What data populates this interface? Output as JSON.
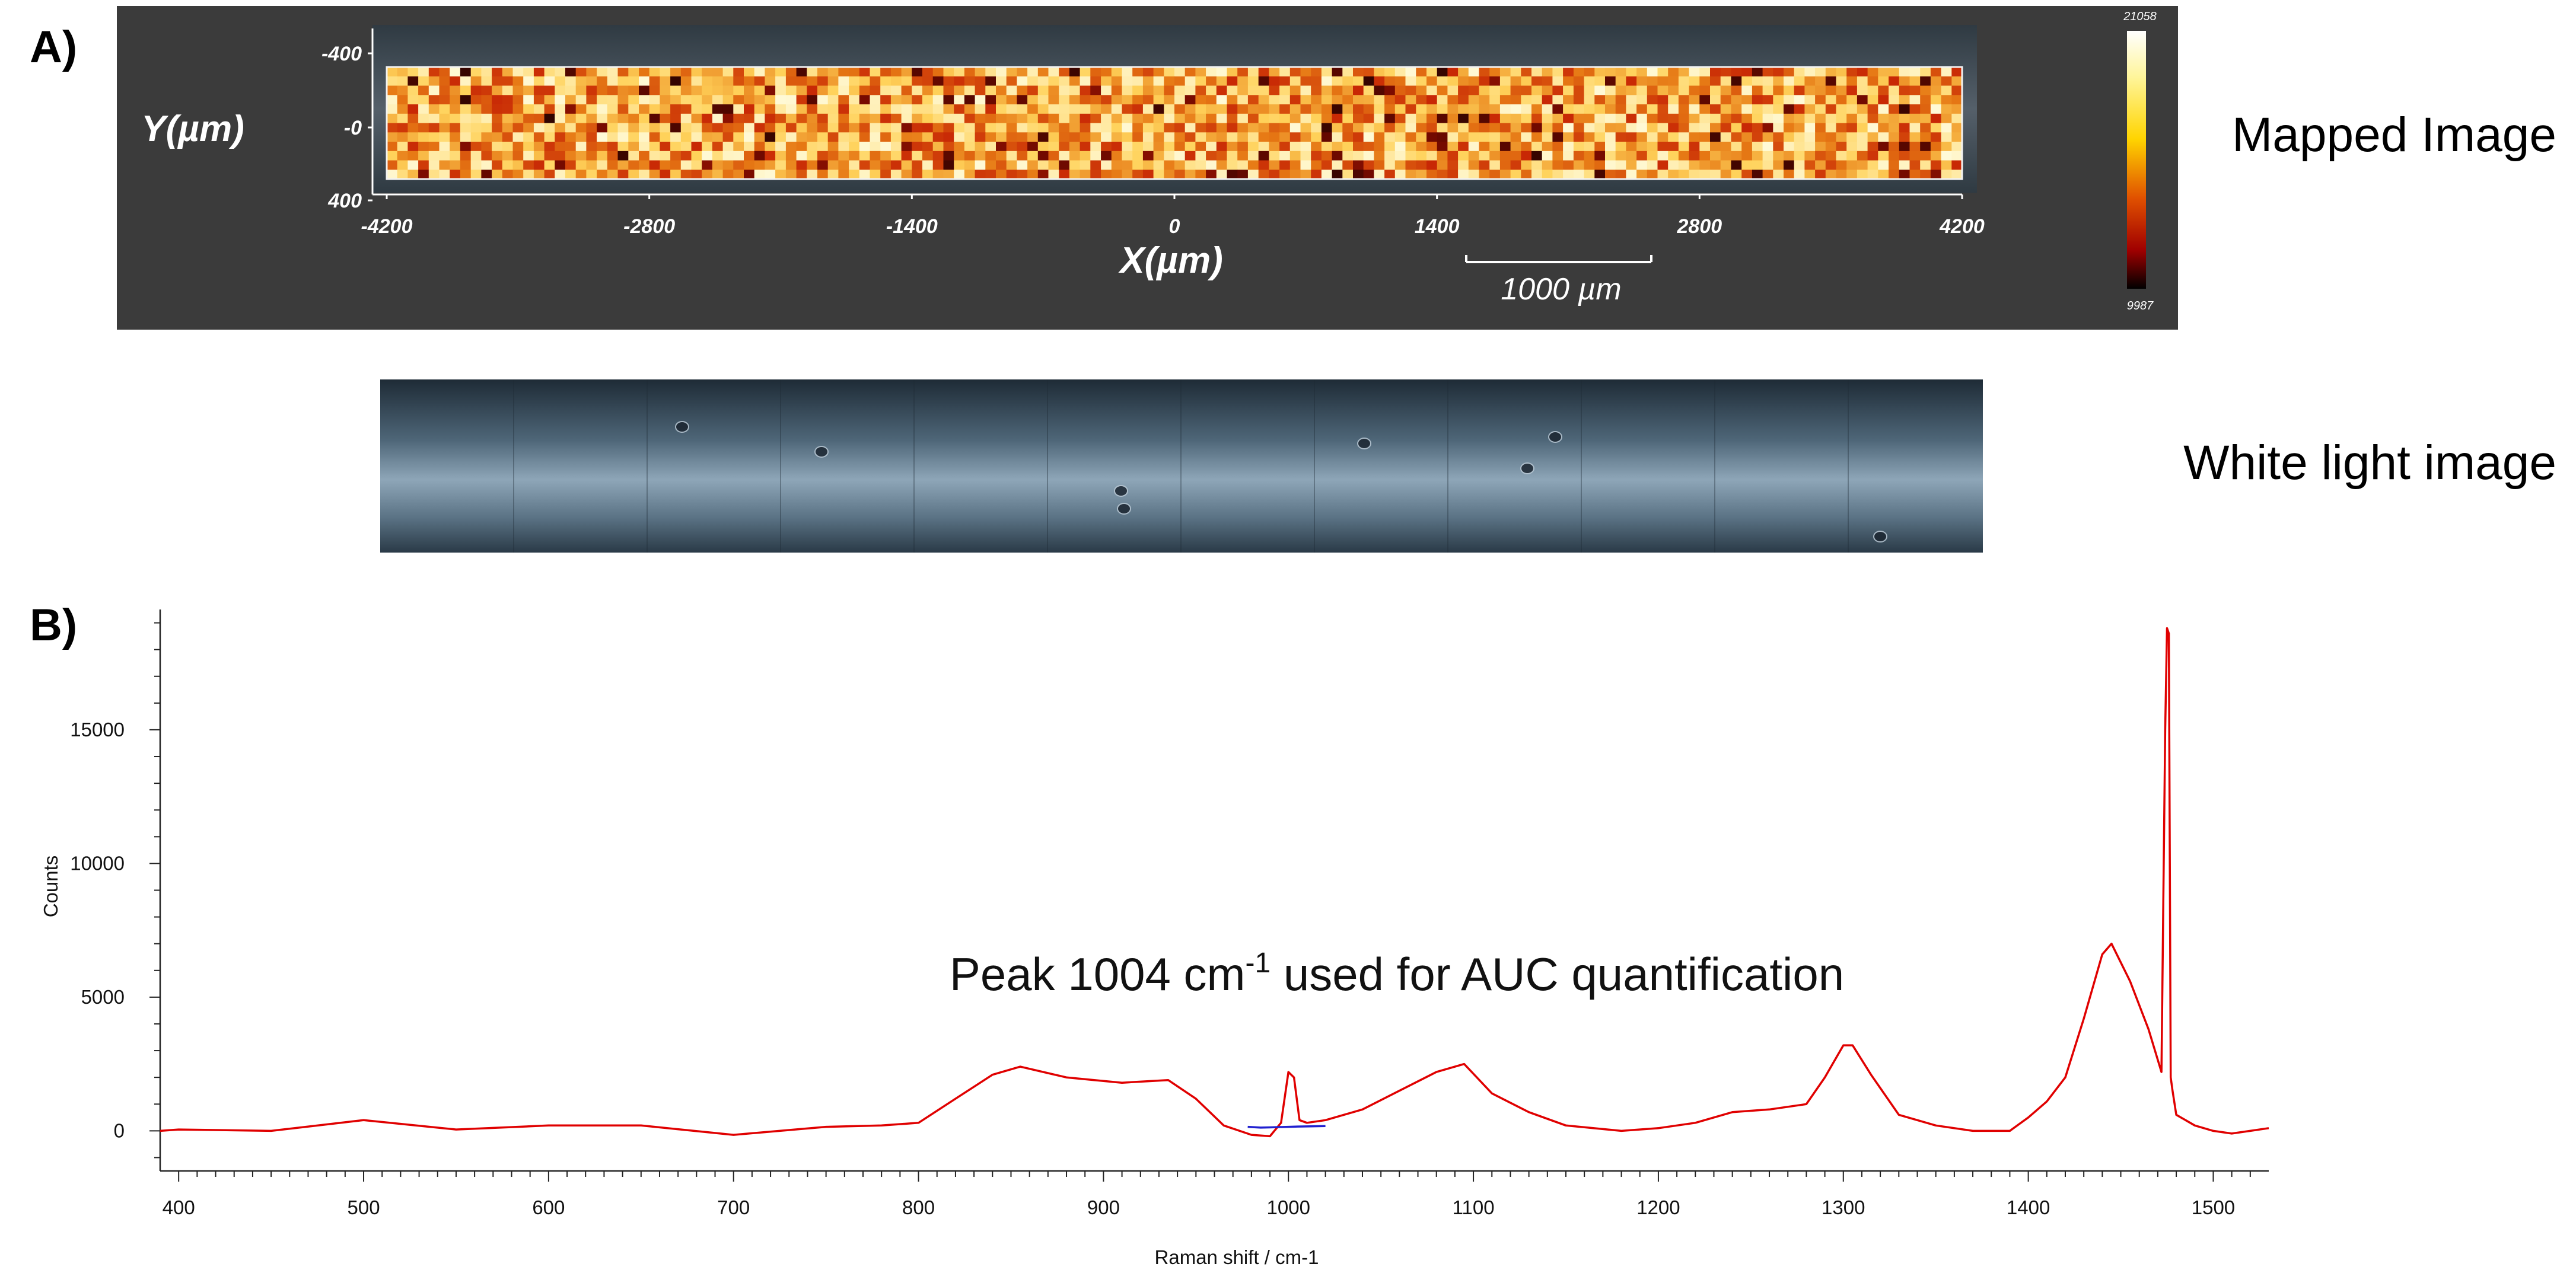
{
  "panel_a": {
    "label": "A)",
    "map_caption": "Mapped Image",
    "white_light_caption": "White light image",
    "scale_bar_label": "1000 µm",
    "colorbar": {
      "max_label": "21058",
      "min_label": "9987"
    },
    "colors": {
      "panel_bg": "#3b3b3b",
      "map_low": "#000000",
      "map_mid": "#c81e05",
      "map_high": "#fff7c8"
    }
  },
  "panel_b": {
    "label": "B)",
    "annotation_main": "Peak 1004 cm",
    "annotation_sup": "-1",
    "annotation_rest": " used for AUC quantification"
  },
  "chart_data": [
    {
      "type": "heatmap",
      "xlabel": "X(µm)",
      "ylabel": "Y(µm)",
      "x_ticks": [
        "-4200",
        "-2800",
        "-1400",
        "0",
        "1400",
        "2800",
        "4200"
      ],
      "y_ticks": [
        "-400",
        "-0",
        "400"
      ],
      "xlim": [
        -4200,
        4200
      ],
      "ylim": [
        -400,
        400
      ],
      "color_range": [
        9987,
        21058
      ]
    },
    {
      "type": "line",
      "xlabel": "Raman shift / cm-1",
      "ylabel": "Counts",
      "xlim": [
        390,
        1530
      ],
      "ylim": [
        -1500,
        19500
      ],
      "x_ticks": [
        "400",
        "500",
        "600",
        "700",
        "800",
        "900",
        "1000",
        "1100",
        "1200",
        "1300",
        "1400",
        "1500"
      ],
      "y_ticks": [
        "0",
        "5000",
        "10000",
        "15000"
      ],
      "series": [
        {
          "color": "#e00000",
          "x": [
            390,
            400,
            450,
            500,
            550,
            600,
            650,
            700,
            750,
            780,
            800,
            820,
            840,
            855,
            880,
            910,
            935,
            950,
            965,
            980,
            990,
            996,
            1000,
            1003,
            1006,
            1010,
            1020,
            1040,
            1060,
            1080,
            1095,
            1110,
            1130,
            1150,
            1180,
            1200,
            1220,
            1240,
            1260,
            1280,
            1290,
            1300,
            1305,
            1315,
            1330,
            1350,
            1370,
            1390,
            1400,
            1410,
            1420,
            1430,
            1440,
            1445,
            1455,
            1465,
            1472,
            1474,
            1475,
            1476,
            1477,
            1478,
            1480,
            1490,
            1500,
            1510,
            1520,
            1530
          ],
          "y": [
            0,
            50,
            0,
            400,
            50,
            200,
            200,
            -150,
            150,
            200,
            300,
            1200,
            2100,
            2400,
            2000,
            1800,
            1900,
            1200,
            200,
            -150,
            -200,
            300,
            2200,
            2000,
            400,
            300,
            400,
            800,
            1500,
            2200,
            2500,
            1400,
            700,
            200,
            0,
            100,
            300,
            700,
            800,
            1000,
            2000,
            3200,
            3200,
            2100,
            600,
            200,
            0,
            0,
            500,
            1100,
            2000,
            4200,
            6600,
            7000,
            5600,
            3800,
            2200,
            15000,
            18800,
            18600,
            2000,
            1500,
            600,
            200,
            0,
            -100,
            0,
            100
          ]
        },
        {
          "color": "#2020d0",
          "x": [
            978,
            985,
            990,
            995,
            1000,
            1005,
            1012,
            1020
          ],
          "y": [
            150,
            120,
            130,
            140,
            150,
            160,
            170,
            180
          ]
        }
      ]
    }
  ]
}
